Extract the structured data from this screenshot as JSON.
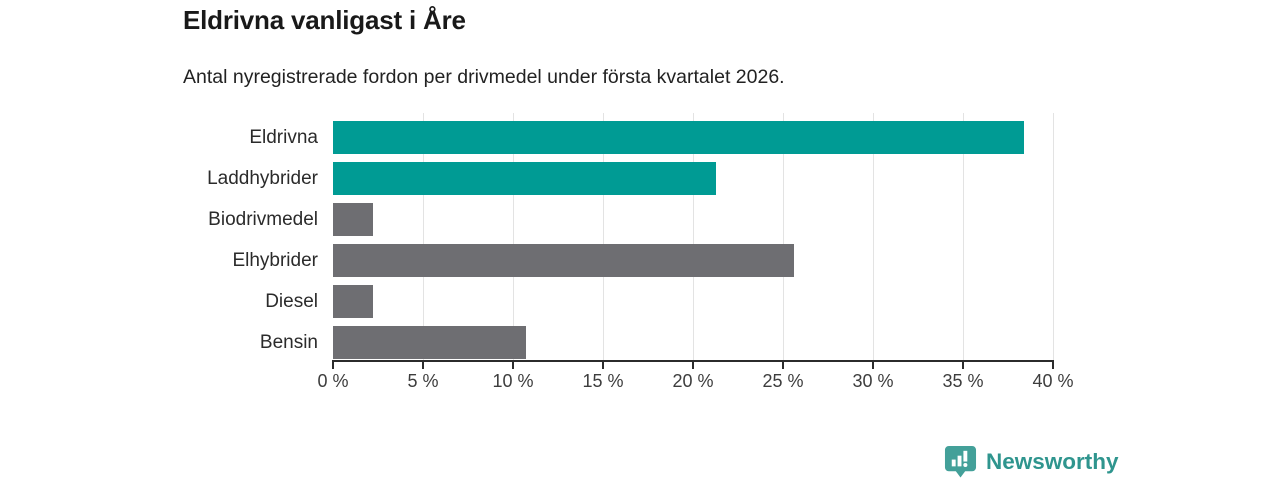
{
  "header": {
    "title": "Eldrivna vanligast i Åre",
    "subtitle": "Antal nyregistrerade fordon per drivmedel under första kvartalet 2026."
  },
  "chart_data": {
    "type": "bar",
    "orientation": "horizontal",
    "title": "Eldrivna vanligast i Åre",
    "subtitle": "Antal nyregistrerade fordon per drivmedel under första kvartalet 2026.",
    "categories": [
      "Eldrivna",
      "Laddhybrider",
      "Biodrivmedel",
      "Elhybrider",
      "Diesel",
      "Bensin"
    ],
    "values": [
      38.4,
      21.3,
      2.2,
      25.6,
      2.2,
      10.7
    ],
    "unit": "%",
    "bar_colors": [
      "#009b94",
      "#009b94",
      "#6e6e72",
      "#6e6e72",
      "#6e6e72",
      "#6e6e72"
    ],
    "xlabel": "",
    "ylabel": "",
    "xlim": [
      0,
      40
    ],
    "xticks": [
      0,
      5,
      10,
      15,
      20,
      25,
      30,
      35,
      40
    ],
    "xtick_labels": [
      "0 %",
      "5 %",
      "10 %",
      "15 %",
      "20 %",
      "25 %",
      "30 %",
      "35 %",
      "40 %"
    ],
    "grid": "vertical",
    "legend": "none"
  },
  "footer": {
    "brand": "Newsworthy"
  },
  "colors": {
    "accent_teal": "#009b94",
    "bar_gray": "#6e6e72",
    "badge_teal": "#43a099",
    "wordmark_teal": "#2f958e",
    "title_text": "#191919",
    "gridline": "#e3e3e3",
    "axis": "#2b2b2b"
  }
}
